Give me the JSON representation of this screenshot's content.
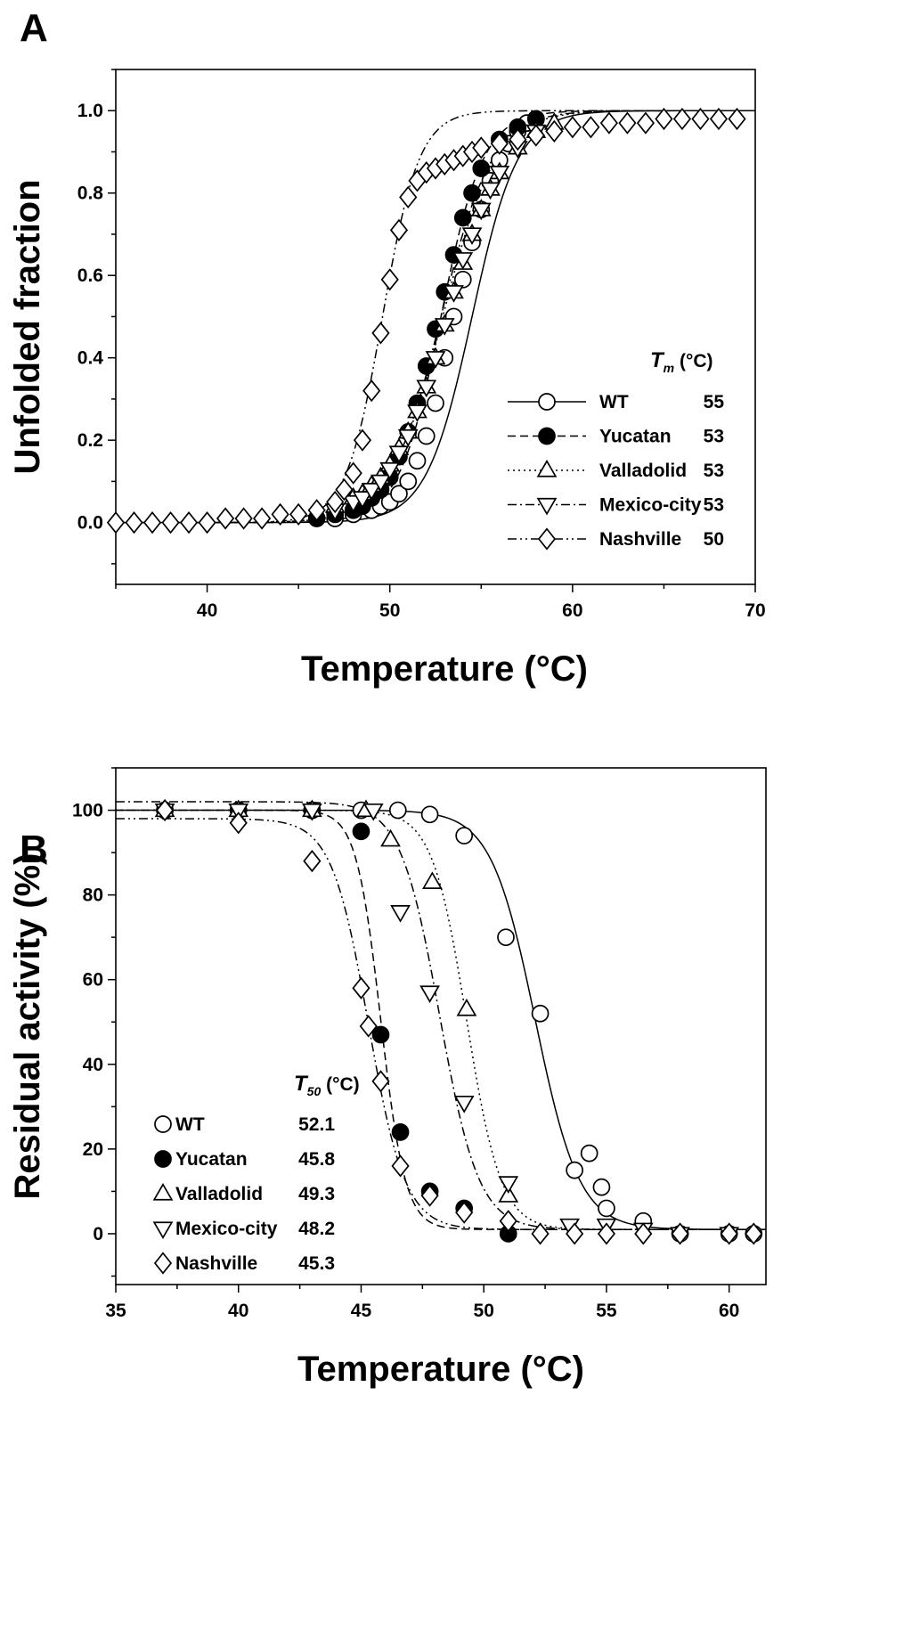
{
  "chart_data": [
    {
      "panel": "A",
      "type": "line",
      "xlabel": "Temperature (°C)",
      "ylabel": "Unfolded fraction",
      "xlim": [
        35,
        70
      ],
      "ylim": [
        -0.15,
        1.1
      ],
      "xticks": [
        40,
        50,
        60,
        70
      ],
      "yticks": [
        0.0,
        0.2,
        0.4,
        0.6,
        0.8,
        1.0
      ],
      "legend_header": {
        "symbol": "T",
        "subscript": "m",
        "unit": " (°C)"
      },
      "legend_placement": "lower-right",
      "series": [
        {
          "name": "WT",
          "value": "55",
          "marker": "circle-open",
          "line": "solid",
          "tm": 54.5,
          "k": 1.25,
          "x": [
            47,
            48,
            49,
            49.5,
            50,
            50.5,
            51,
            51.5,
            52,
            52.5,
            53,
            53.5,
            54,
            54.5,
            55,
            55.5,
            56,
            56.5,
            57,
            57.5,
            58
          ],
          "y": [
            0.01,
            0.02,
            0.03,
            0.04,
            0.05,
            0.07,
            0.1,
            0.15,
            0.21,
            0.29,
            0.4,
            0.5,
            0.59,
            0.68,
            0.76,
            0.83,
            0.88,
            0.92,
            0.95,
            0.97,
            0.98
          ]
        },
        {
          "name": "Yucatan",
          "value": "53",
          "marker": "circle-filled",
          "line": "dash",
          "tm": 52.8,
          "k": 1.15,
          "x": [
            46,
            47,
            48,
            48.5,
            49,
            49.5,
            50,
            50.5,
            51,
            51.5,
            52,
            52.5,
            53,
            53.5,
            54,
            54.5,
            55,
            56,
            57,
            58
          ],
          "y": [
            0.01,
            0.02,
            0.03,
            0.04,
            0.06,
            0.08,
            0.11,
            0.16,
            0.22,
            0.29,
            0.38,
            0.47,
            0.56,
            0.65,
            0.74,
            0.8,
            0.86,
            0.93,
            0.96,
            0.98
          ]
        },
        {
          "name": "Valladolid",
          "value": "53",
          "marker": "triangle-up-open",
          "line": "dot",
          "tm": 52.9,
          "k": 1.45,
          "x": [
            47,
            48,
            48.5,
            49,
            49.5,
            50,
            50.5,
            51,
            51.5,
            52,
            52.5,
            53,
            53.5,
            54,
            54.5,
            55,
            55.5,
            56,
            57,
            58,
            59
          ],
          "y": [
            0.04,
            0.06,
            0.07,
            0.09,
            0.11,
            0.14,
            0.18,
            0.22,
            0.27,
            0.33,
            0.4,
            0.48,
            0.56,
            0.63,
            0.7,
            0.76,
            0.81,
            0.85,
            0.91,
            0.95,
            0.97
          ]
        },
        {
          "name": "Mexico-city",
          "value": "53",
          "marker": "triangle-down-open",
          "line": "dashdot",
          "tm": 52.8,
          "k": 1.4,
          "x": [
            47,
            48,
            48.5,
            49,
            49.5,
            50,
            50.5,
            51,
            51.5,
            52,
            52.5,
            53,
            53.5,
            54,
            54.5,
            55,
            55.5,
            56,
            57,
            58
          ],
          "y": [
            0.03,
            0.05,
            0.06,
            0.08,
            0.1,
            0.13,
            0.17,
            0.21,
            0.27,
            0.33,
            0.4,
            0.48,
            0.56,
            0.64,
            0.7,
            0.76,
            0.81,
            0.85,
            0.91,
            0.95
          ]
        },
        {
          "name": "Nashville",
          "value": "50",
          "marker": "diamond-open",
          "line": "dashdotdot",
          "tm": 49.6,
          "k": 1.0,
          "x": [
            35,
            36,
            37,
            38,
            39,
            40,
            41,
            42,
            43,
            44,
            45,
            46,
            47,
            47.5,
            48,
            48.5,
            49,
            49.5,
            50,
            50.5,
            51,
            51.5,
            52,
            52.5,
            53,
            53.5,
            54,
            54.5,
            55,
            56,
            57,
            58,
            59,
            60,
            61,
            62,
            63,
            64,
            65,
            66,
            67,
            68,
            69
          ],
          "y": [
            0.0,
            0.0,
            0.0,
            0.0,
            0.0,
            0.0,
            0.01,
            0.01,
            0.01,
            0.02,
            0.02,
            0.03,
            0.05,
            0.08,
            0.12,
            0.2,
            0.32,
            0.46,
            0.59,
            0.71,
            0.79,
            0.83,
            0.85,
            0.86,
            0.87,
            0.88,
            0.89,
            0.9,
            0.91,
            0.92,
            0.93,
            0.94,
            0.95,
            0.96,
            0.96,
            0.97,
            0.97,
            0.97,
            0.98,
            0.98,
            0.98,
            0.98,
            0.98
          ]
        }
      ]
    },
    {
      "panel": "B",
      "type": "line",
      "xlabel": "Temperature (°C)",
      "ylabel": "Residual activity (%)",
      "xlim": [
        35,
        61.5
      ],
      "ylim": [
        -12,
        110
      ],
      "xticks": [
        35,
        40,
        45,
        50,
        55,
        60
      ],
      "yticks": [
        0,
        20,
        40,
        60,
        80,
        100
      ],
      "legend_header": {
        "symbol": "T",
        "subscript": "50",
        "unit": " (°C)"
      },
      "legend_placement": "lower-left",
      "series": [
        {
          "name": "WT",
          "value": "52.1",
          "marker": "circle-open",
          "line": "solid",
          "t50": 52.1,
          "k": 0.9,
          "top": 100,
          "bottom": 1,
          "x": [
            37,
            40,
            43,
            45,
            46.5,
            47.8,
            49.2,
            50.9,
            52.3,
            53.7,
            54.3,
            54.8,
            55.0,
            56.5,
            58,
            60,
            61
          ],
          "y": [
            100,
            100,
            100,
            100,
            100,
            99,
            94,
            70,
            52,
            15,
            19,
            11,
            6,
            3,
            0,
            0,
            0
          ]
        },
        {
          "name": "Yucatan",
          "value": "45.8",
          "marker": "circle-filled",
          "line": "dash",
          "t50": 45.8,
          "k": 0.5,
          "top": 100,
          "bottom": 1,
          "x": [
            37,
            40,
            43,
            45,
            45.8,
            46.6,
            47.8,
            49.2,
            51
          ],
          "y": [
            100,
            100,
            100,
            95,
            47,
            24,
            10,
            6,
            0
          ]
        },
        {
          "name": "Valladolid",
          "value": "49.3",
          "marker": "triangle-up-open",
          "line": "dot",
          "t50": 49.3,
          "k": 0.7,
          "top": 100,
          "bottom": 1,
          "x": [
            37,
            40,
            43,
            45.2,
            46.2,
            47.9,
            49.3,
            51
          ],
          "y": [
            100,
            100,
            100,
            100,
            93,
            83,
            53,
            9
          ]
        },
        {
          "name": "Mexico-city",
          "value": "48.2",
          "marker": "triangle-down-open",
          "line": "dashdot",
          "t50": 48.2,
          "k": 0.8,
          "top": 102,
          "bottom": 1,
          "x": [
            37,
            40,
            43,
            45.5,
            46.6,
            47.8,
            49.2,
            51,
            53.5,
            55,
            56.5,
            58,
            60
          ],
          "y": [
            100,
            100,
            100,
            100,
            76,
            57,
            31,
            12,
            2,
            2,
            1,
            0,
            0
          ]
        },
        {
          "name": "Nashville",
          "value": "45.3",
          "marker": "diamond-open",
          "line": "dashdotdot",
          "t50": 45.3,
          "k": 0.75,
          "top": 98,
          "bottom": 1,
          "x": [
            37,
            40,
            43,
            45,
            45.3,
            45.8,
            46.6,
            47.8,
            49.2,
            51,
            52.3,
            53.7,
            55,
            56.5,
            58,
            60,
            61
          ],
          "y": [
            100,
            97,
            88,
            58,
            49,
            36,
            16,
            9,
            5,
            3,
            0,
            0,
            0,
            0,
            0,
            0,
            0
          ]
        }
      ]
    }
  ]
}
